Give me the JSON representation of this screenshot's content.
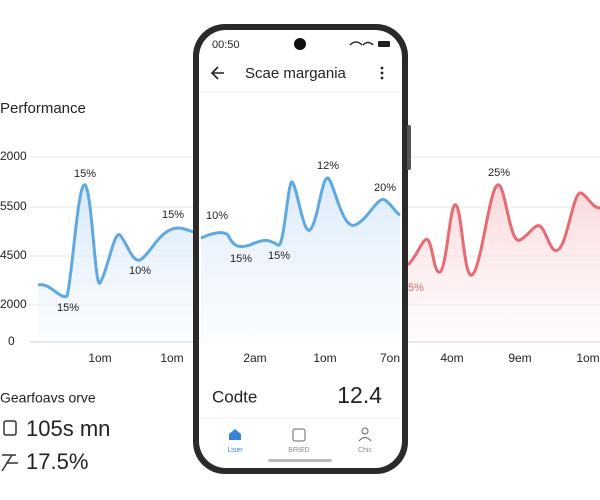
{
  "background": {
    "title": "Performance",
    "y_labels": [
      "2000",
      "5500",
      "4500",
      "2000",
      "0"
    ],
    "point_labels": [
      "15%",
      "15%",
      "10%",
      "15%",
      "10%",
      "15%",
      "15%",
      "12%",
      "20%",
      "25%",
      "5%"
    ],
    "x_labels": [
      "1om",
      "1om",
      "2am",
      "1om",
      "7on",
      "4om",
      "9em",
      "1om"
    ],
    "stats_title": "Gearfoavs orve",
    "stat_1": "105s mn",
    "stat_2": "17.5%"
  },
  "phone": {
    "status_time": "00:50",
    "header_title": "Scae margania",
    "footer_label": "Codte",
    "footer_value": "12.4",
    "tabs": [
      "Liser",
      "BRIED",
      "Chic"
    ]
  }
}
